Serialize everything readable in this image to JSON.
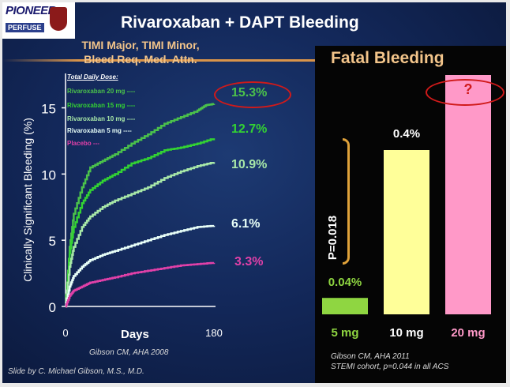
{
  "slide": {
    "title": "Rivaroxaban + DAPT Bleeding",
    "logo_text": "PIONEER",
    "logo_sub": "PERFUSE",
    "credit": "Slide by C. Michael Gibson, M.S., M.D."
  },
  "chart_data": [
    {
      "type": "line",
      "title": "TIMI Major,  TIMI Minor, Bleed Req. Med. Attn.",
      "xlabel": "Days",
      "ylabel": "Clinically Significant Bleeding (%)",
      "xlim": [
        0,
        180
      ],
      "ylim": [
        0,
        17
      ],
      "x_ticks": [
        "0",
        "180"
      ],
      "y_ticks": [
        "0",
        "5",
        "10",
        "15"
      ],
      "legend_title": "Total Daily Dose:",
      "citation": "Gibson CM, AHA 2008",
      "series": [
        {
          "name": "Rivaroxaban  20 mg ----",
          "color": "#4bc24b",
          "end_label": "15.3%",
          "x": [
            0,
            5,
            10,
            20,
            30,
            45,
            60,
            80,
            100,
            120,
            140,
            160,
            170,
            180
          ],
          "y": [
            0,
            4.5,
            7.0,
            9.0,
            10.5,
            11.0,
            11.5,
            12.3,
            13.0,
            13.8,
            14.3,
            14.8,
            15.2,
            15.3
          ]
        },
        {
          "name": "Rivaroxaban  15 mg ----",
          "color": "#33d233",
          "end_label": "12.7%",
          "x": [
            0,
            5,
            10,
            20,
            30,
            45,
            60,
            80,
            100,
            120,
            140,
            160,
            180
          ],
          "y": [
            0,
            4.0,
            6.0,
            7.8,
            8.8,
            9.5,
            10.0,
            10.8,
            11.2,
            11.8,
            12.0,
            12.3,
            12.7
          ]
        },
        {
          "name": "Rivaroxaban  10 mg ----",
          "color": "#a8e8a8",
          "end_label": "10.9%",
          "x": [
            0,
            5,
            10,
            20,
            30,
            45,
            60,
            80,
            100,
            120,
            140,
            160,
            180
          ],
          "y": [
            0,
            3.0,
            4.5,
            6.0,
            6.8,
            7.5,
            8.0,
            8.5,
            9.0,
            9.7,
            10.2,
            10.6,
            10.9
          ]
        },
        {
          "name": "Rivaroxaban  5 mg ----",
          "color": "#e8fff8",
          "end_label": "6.1%",
          "x": [
            0,
            5,
            10,
            20,
            30,
            45,
            60,
            80,
            100,
            120,
            140,
            160,
            180
          ],
          "y": [
            0,
            1.5,
            2.3,
            3.0,
            3.5,
            3.9,
            4.2,
            4.6,
            5.0,
            5.4,
            5.7,
            6.0,
            6.1
          ]
        },
        {
          "name": "Placebo ---",
          "color": "#e040a8",
          "end_label": "3.3%",
          "x": [
            0,
            5,
            10,
            20,
            30,
            45,
            60,
            80,
            100,
            120,
            140,
            160,
            180
          ],
          "y": [
            0,
            0.8,
            1.2,
            1.5,
            1.8,
            2.0,
            2.2,
            2.5,
            2.7,
            2.9,
            3.1,
            3.2,
            3.3
          ]
        }
      ]
    },
    {
      "type": "bar",
      "title": "Fatal Bleeding",
      "categories": [
        "5 mg",
        "10 mg",
        "20 mg"
      ],
      "values": [
        0.04,
        0.4,
        null
      ],
      "value_labels": [
        "0.04%",
        "0.4%",
        "?"
      ],
      "colors": [
        "#8fd641",
        "#ffff99",
        "#ff99c8"
      ],
      "label_colors": [
        "#8fd641",
        "#ffffff",
        "#ff99c8"
      ],
      "annotation": "P=0.018",
      "citation_lines": [
        "Gibson CM, AHA 2011",
        "STEMI cohort, p=0.044 in all ACS"
      ]
    }
  ]
}
